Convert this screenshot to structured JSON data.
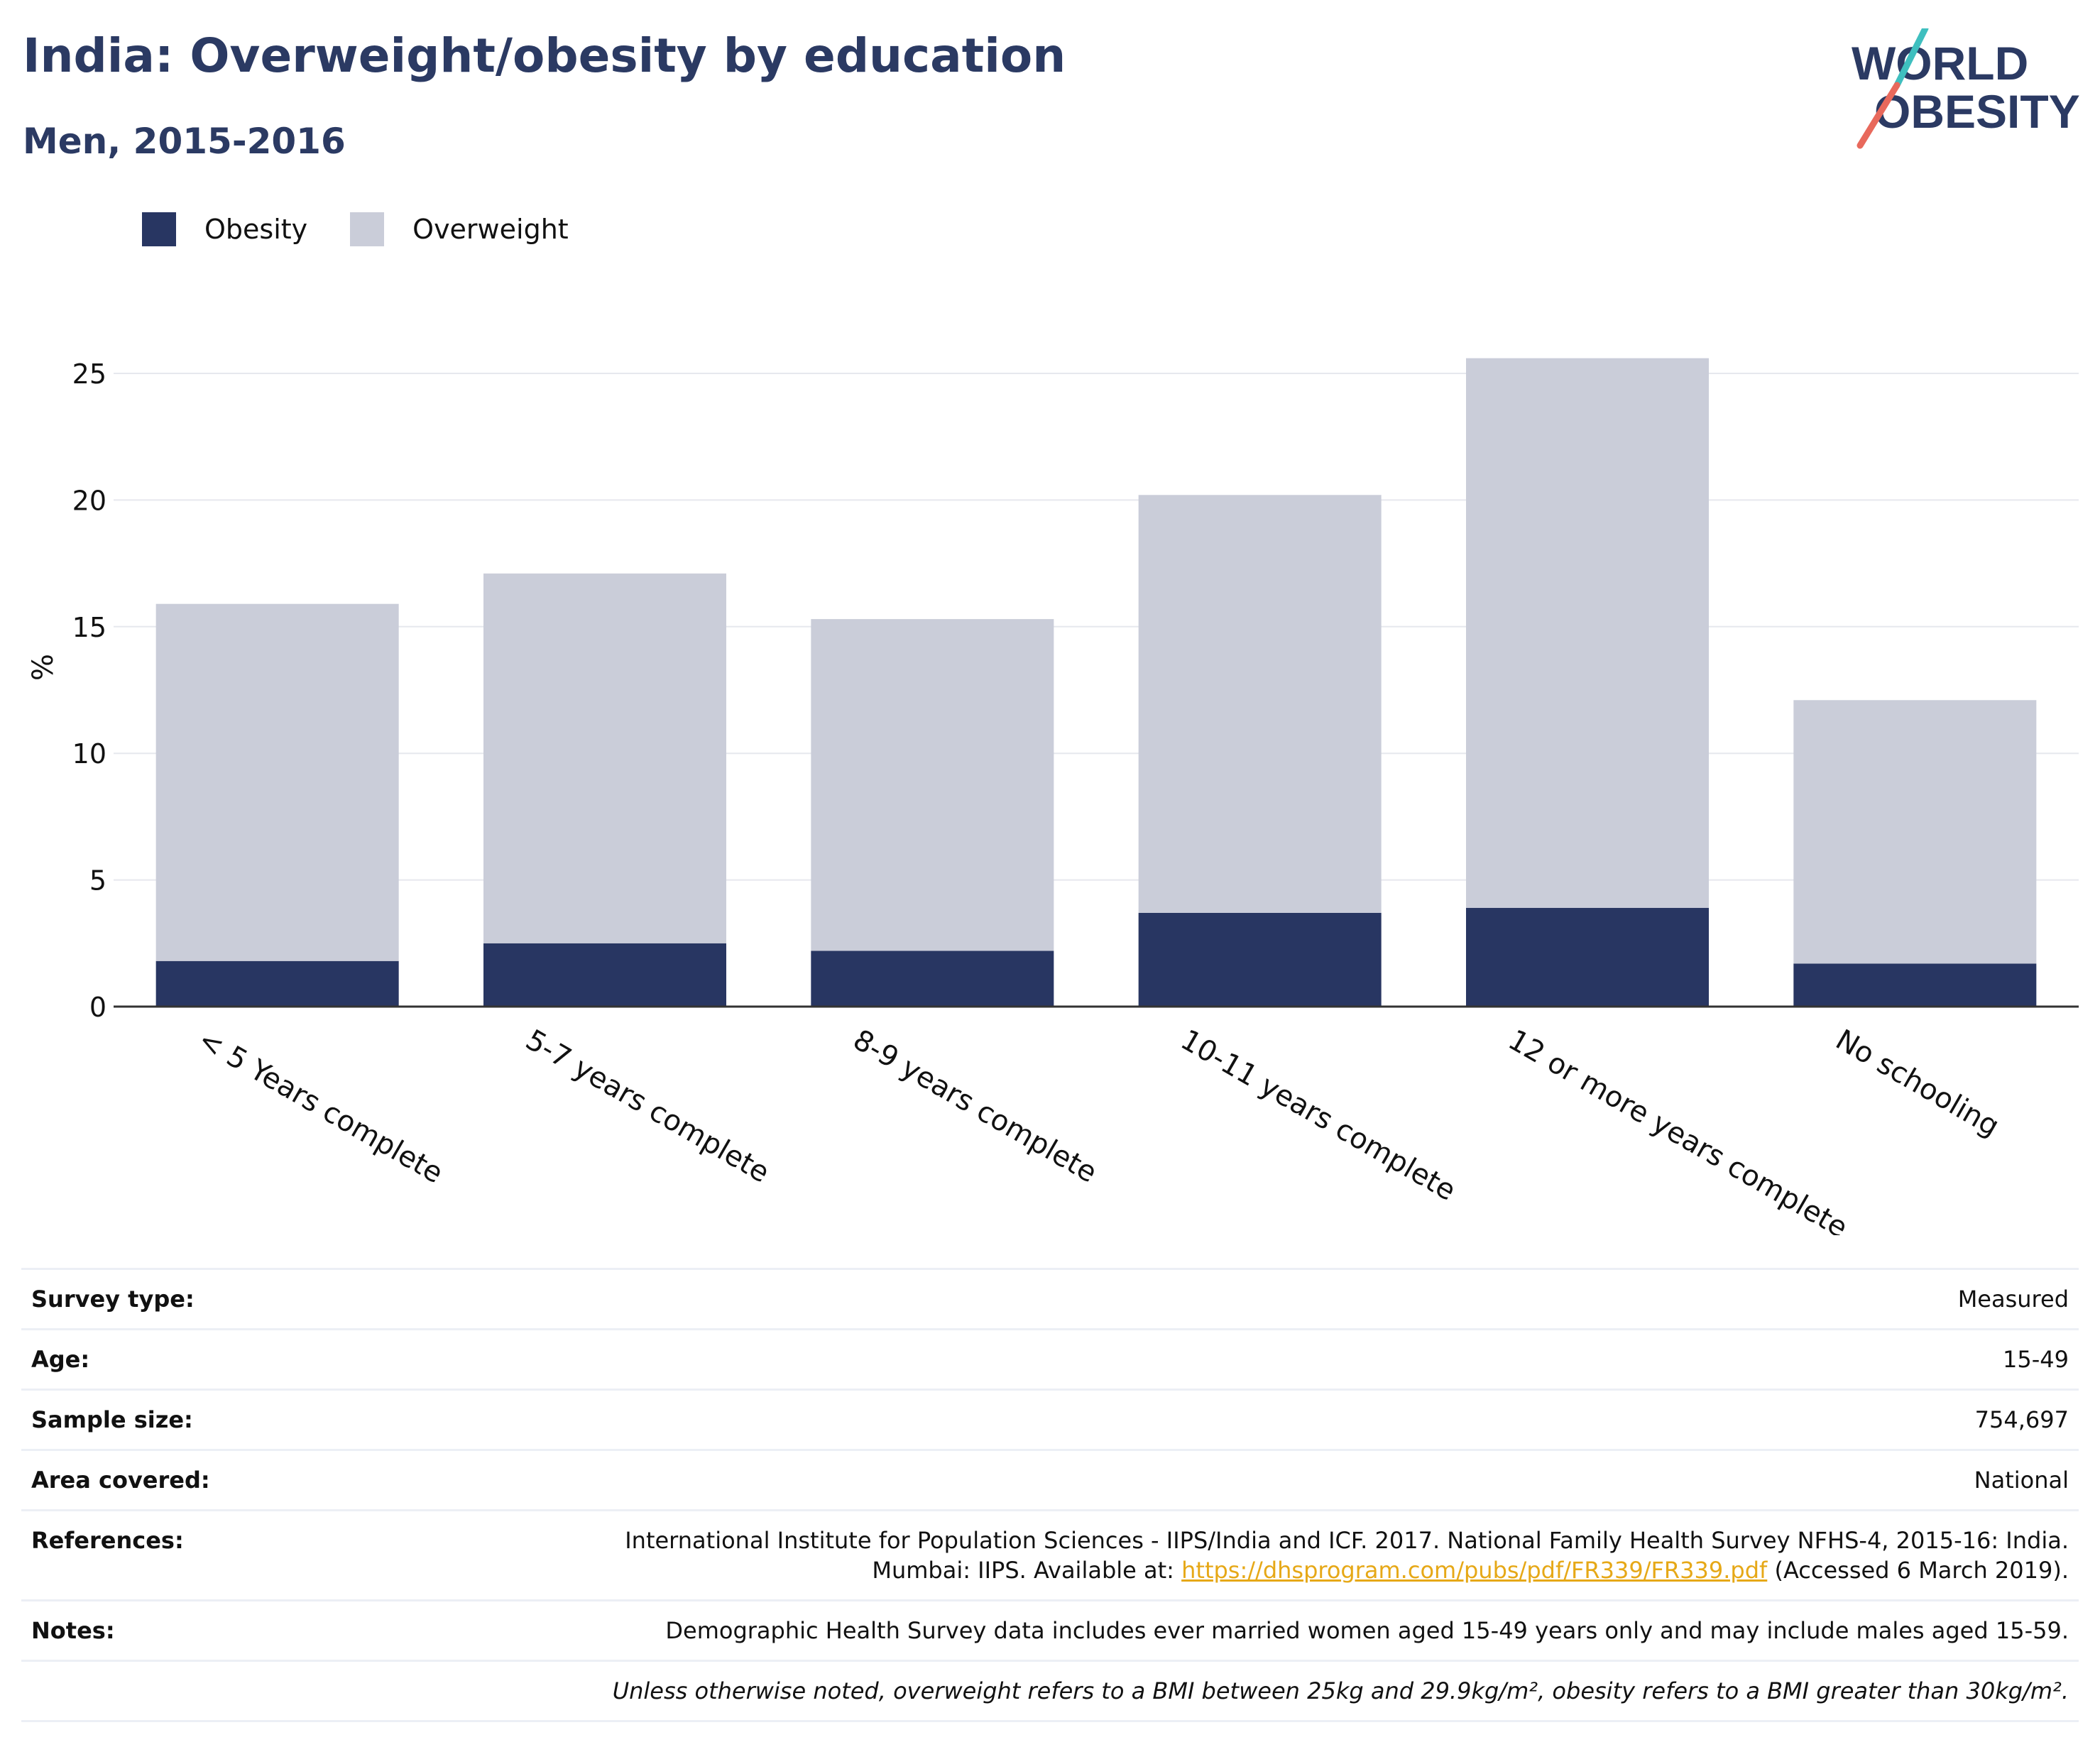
{
  "header": {
    "title": "India: Overweight/obesity by education",
    "subtitle": "Men, 2015-2016"
  },
  "logo": {
    "line1": "WORLD",
    "line2": "OBESITY",
    "color": "#2b3a63",
    "accent_teal": "#3fbfbf",
    "accent_red": "#e8695c"
  },
  "legend": [
    {
      "label": "Obesity",
      "color": "#283662"
    },
    {
      "label": "Overweight",
      "color": "#cacdd9"
    }
  ],
  "chart_data": {
    "type": "bar",
    "stacked": true,
    "title": "India: Overweight/obesity by education",
    "subtitle": "Men, 2015-2016",
    "xlabel": "",
    "ylabel": "%",
    "ylim": [
      0,
      27
    ],
    "yticks": [
      0,
      5,
      10,
      15,
      20,
      25
    ],
    "grid": true,
    "legend_position": "top-left",
    "categories": [
      "< 5 Years complete",
      "5-7 years complete",
      "8-9 years complete",
      "10-11 years complete",
      "12 or more years complete",
      "No schooling"
    ],
    "series": [
      {
        "name": "Obesity",
        "color": "#283662",
        "values": [
          1.8,
          2.5,
          2.2,
          3.7,
          3.9,
          1.7
        ]
      },
      {
        "name": "Overweight",
        "color": "#cacdd9",
        "values": [
          14.1,
          14.6,
          13.1,
          16.5,
          21.7,
          10.4
        ]
      }
    ]
  },
  "info_table": {
    "survey_type": {
      "label": "Survey type:",
      "value": "Measured"
    },
    "age": {
      "label": "Age:",
      "value": "15-49"
    },
    "sample_size": {
      "label": "Sample size:",
      "value": "754,697"
    },
    "area": {
      "label": "Area covered:",
      "value": "National"
    },
    "references": {
      "label": "References:",
      "line1": "International Institute for Population Sciences - IIPS/India and ICF. 2017. National Family Health Survey NFHS-4, 2015-16: India.",
      "line2_prefix": "Mumbai: IIPS. Available at: ",
      "link": "https://dhsprogram.com/pubs/pdf/FR339/FR339.pdf",
      "line2_suffix": " (Accessed 6 March 2019)."
    },
    "notes": {
      "label": "Notes:",
      "value": "Demographic Health Survey data includes ever married women aged 15-49 years only and may include males aged 15-59."
    },
    "definition": "Unless otherwise noted, overweight refers to a BMI between 25kg and 29.9kg/m², obesity refers to a BMI greater than 30kg/m²."
  }
}
